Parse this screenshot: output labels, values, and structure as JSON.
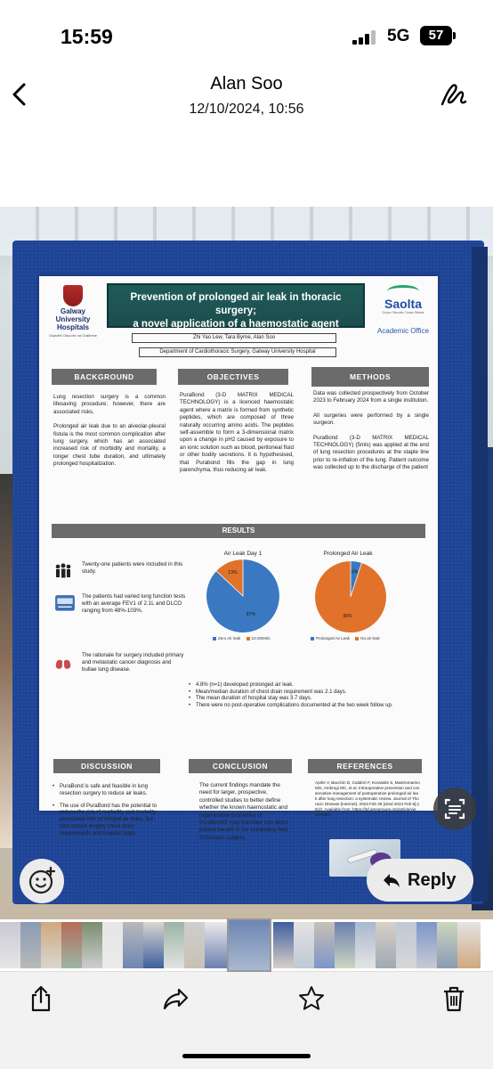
{
  "status_bar": {
    "time": "15:59",
    "network": "5G",
    "battery": "57"
  },
  "header": {
    "sender": "Alan Soo",
    "timestamp": "12/10/2024, 10:56",
    "back_icon": "chevron-left-icon",
    "markup_icon": "markup-pen-icon"
  },
  "poster": {
    "logo_left": {
      "name": "Galway University Hospitals",
      "line1": "Galway",
      "line2": "University",
      "line3": "Hospitals",
      "sub": "Ospidéil Ollscoile na Gaillimhe"
    },
    "title_line1": "Prevention of prolonged air leak in thoracic surgery;",
    "title_line2": "a novel application of a haemostatic agent",
    "logo_right": {
      "name": "Saolta",
      "sub": "Grúpa Ollscoile Cúram Sláinte",
      "academic": "Academic Office"
    },
    "authors": "Zhi Yao Lew, Tara Byrne, Alan Soo",
    "department": "Department of Cardiothoracic Surgery, Galway University Hospital",
    "background": {
      "heading": "BACKGROUND",
      "p1": "Lung resection surgery is a common lifesaving procedure; however, there are associated risks.",
      "p2": "Prolonged air leak due to an alveolar-pleural fistula is the most common complication after lung surgery, which has an associated increased risk of morbidity and mortality, a longer chest tube duration, and ultimately prolonged hospitalization."
    },
    "objectives": {
      "heading": "OBJECTIVES",
      "p1": "PuraBond (3-D MATRIX MEDICAL TECHNOLOGY) is a licenced haemostatic agent where a matrix is formed from synthetic peptides, which are composed of three naturally occurring amino acids. The peptides self-assemble to form a 3-dimensional matrix upon a change in pH2 caused by exposure to an ionic solution such as blood, peritoneal fluid or other bodily secretions. It is hypothesised, that Purabond fills the gap in lung parenchyma, thus reducing air leak."
    },
    "methods": {
      "heading": "METHODS",
      "p1": "Data was collected prospectively from October 2023 to February 2024 from a single institution.",
      "p2": "All surgeries were performed by a single surgeon.",
      "p3": "PuraBond (3-D MATRIX MEDICAL TECHNOLOGY) (5mls) was applied at the end of lung resection procedures at the staple line prior to re-inflation of the lung. Patient outcome was collected up to the discharge of the patient"
    },
    "results": {
      "heading": "RESULTS",
      "item1": "Twenty-one patients were included in this study.",
      "item2": "The patients had varied lung function tests with an average FEV1 of 2.1L and DLCO ranging from 48%-103%.",
      "item3": "The rationale for surgery included primary and metastatic cancer diagnosis and bullae lung disease.",
      "icon1": "people-icon",
      "icon2": "lung-function-test-icon",
      "icon3": "lungs-icon",
      "bullets": [
        "4.8% (n=1) developed prolonged air leak.",
        "Mean/median duration of chest drain requirement was 2.1 days.",
        "The mean duration of hospital stay was 3.7 days.",
        "There were no post-operative complications documented at the two week follow up."
      ]
    },
    "discussion": {
      "heading": "DISCUSSION",
      "items": [
        "PuraBond is safe and feasible in lung resection surgery to reduce air leaks.",
        "The use of PuraBond has the potential to reduce the risk of morbidity and mortality associated with prolonged air leaks, but also reduce lengthy chest drain requirements and hospital stays."
      ]
    },
    "conclusion": {
      "heading": "CONCLUSION",
      "p1": "The current findings mandate the need for larger, prospective, controlled studies to better define whether the known haemostatic and regenerative properties of PuraBond® may translate into direct patient benefit in the expanding field of thoracic surgery."
    },
    "references": {
      "heading": "REFERENCES",
      "p1": "Aprile V, Bacchin D, Calabrò F, Korasidis S, Mastromarino MG, Ambrogi MC, et al. Intraoperative prevention and conservative management of postoperative prolonged air leak after lung resection: a systematic review. Journal of Thoracic Disease [Internet]. 2023 Feb 28 [cited 2024 Feb 8];15(2). Available from: https://jtd.amegroups.org/article/view/72683"
    }
  },
  "chart_data": [
    {
      "type": "pie",
      "title": "Air Leak Day 1",
      "categories": [
        "Zero Air leak",
        "10-200mls"
      ],
      "values": [
        87,
        13
      ],
      "colors": [
        "#3a78c2",
        "#e0722c"
      ],
      "labels": [
        "87%",
        "13%"
      ],
      "legend": "bottom"
    },
    {
      "type": "pie",
      "title": "Prolonged Air Leak",
      "categories": [
        "Prolonged Air Leak",
        "No air leak"
      ],
      "values": [
        5,
        95
      ],
      "colors": [
        "#3a78c2",
        "#e0722c"
      ],
      "labels": [
        "5%",
        "95%"
      ],
      "legend": "bottom"
    }
  ],
  "actions": {
    "reply_label": "Reply",
    "reply_icon": "reply-arrow-icon",
    "emoji_icon": "add-emoji-icon",
    "scan_icon": "live-text-scan-icon"
  },
  "thumbnails": {
    "colors": [
      "#c9c9d3",
      "#8a9bb4",
      "#d0a87e",
      "#b66b59",
      "#7a8d6f",
      "#e6e6e6",
      "#b9b9b9",
      "#d9d6cf",
      "#9bb5a6",
      "#cfcfcf",
      "#eaeaea",
      "#6e86b3",
      "#3f5f9c",
      "#e2e2e2",
      "#c8c0b5",
      "#6b7fb0",
      "#a9b8cf",
      "#d7d0c8",
      "#bfc9d5",
      "#7c96c9",
      "#cbd7bf",
      "#e4e4e4",
      "#9fa9b4",
      "#d6d6d6"
    ]
  },
  "toolbar": {
    "share_icon": "share-icon",
    "forward_icon": "forward-icon",
    "star_icon": "star-icon",
    "delete_icon": "trash-icon"
  }
}
